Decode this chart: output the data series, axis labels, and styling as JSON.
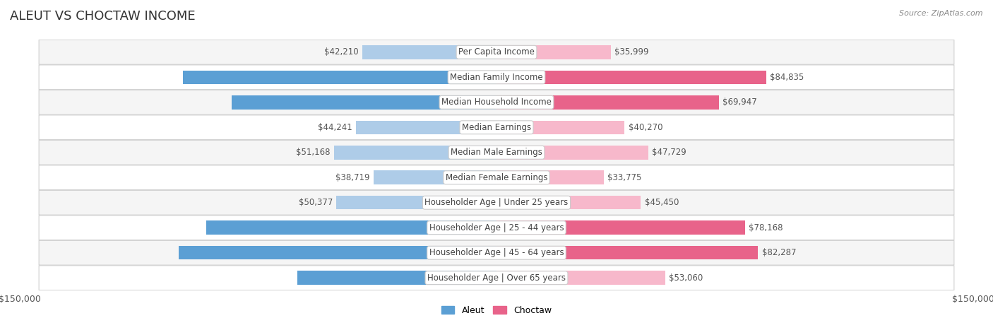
{
  "title": "ALEUT VS CHOCTAW INCOME",
  "source": "Source: ZipAtlas.com",
  "categories": [
    "Per Capita Income",
    "Median Family Income",
    "Median Household Income",
    "Median Earnings",
    "Median Male Earnings",
    "Median Female Earnings",
    "Householder Age | Under 25 years",
    "Householder Age | 25 - 44 years",
    "Householder Age | 45 - 64 years",
    "Householder Age | Over 65 years"
  ],
  "aleut_values": [
    42210,
    98702,
    83446,
    44241,
    51168,
    38719,
    50377,
    91370,
    100052,
    62708
  ],
  "choctaw_values": [
    35999,
    84835,
    69947,
    40270,
    47729,
    33775,
    45450,
    78168,
    82287,
    53060
  ],
  "aleut_color_light": "#aecce8",
  "aleut_color_dark": "#5b9fd4",
  "choctaw_color_light": "#f7b8cb",
  "choctaw_color_dark": "#e8638a",
  "max_value": 150000,
  "background_color": "#ffffff",
  "row_bg_even": "#f5f5f5",
  "row_bg_odd": "#ffffff",
  "label_bg_color": "#ffffff",
  "title_fontsize": 13,
  "label_fontsize": 8.5,
  "value_fontsize": 8.5,
  "axis_label_fontsize": 9,
  "inside_threshold": 60000,
  "legend_fontsize": 9
}
